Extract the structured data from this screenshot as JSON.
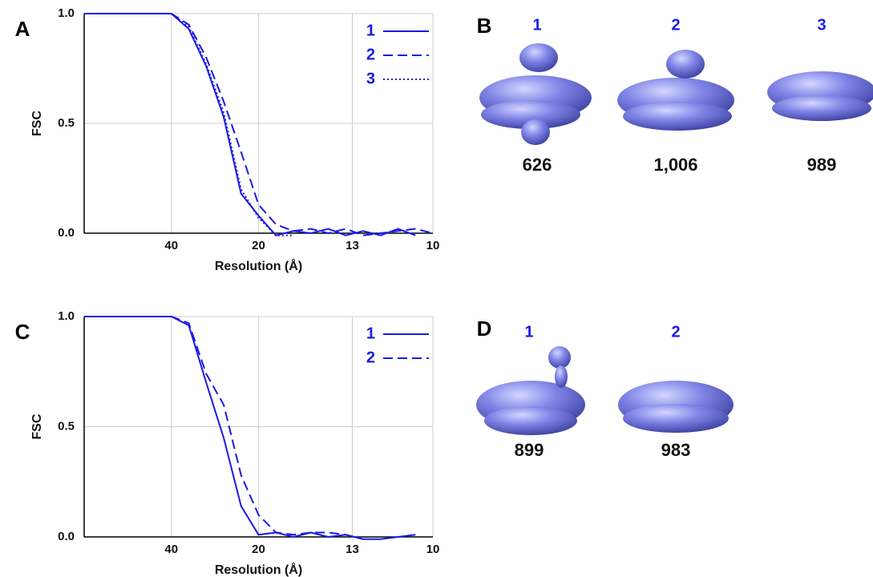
{
  "chart_data": [
    {
      "type": "line",
      "panel": "A",
      "xlabel": "Resolution (Å)",
      "ylabel": "FSC",
      "x": [
        0,
        0.005,
        0.01,
        0.015,
        0.02,
        0.025,
        0.03,
        0.035,
        0.04,
        0.045,
        0.05,
        0.055,
        0.06,
        0.065,
        0.07,
        0.075,
        0.08,
        0.085,
        0.09,
        0.095,
        0.1
      ],
      "series": [
        {
          "name": "1",
          "color": "#1a1ae6",
          "dash": "solid",
          "values": [
            1,
            1,
            1,
            1,
            1,
            1,
            0.93,
            0.76,
            0.53,
            0.18,
            0.08,
            -0.01,
            0.01,
            0.0,
            0.02,
            -0.01,
            0.01,
            -0.01,
            0.02,
            -0.01,
            null
          ]
        },
        {
          "name": "2",
          "color": "#1a1ae6",
          "dash": "dashed",
          "values": [
            1,
            1,
            1,
            1,
            1,
            1,
            0.95,
            0.8,
            0.6,
            0.37,
            0.13,
            0.04,
            0.01,
            0.02,
            0.0,
            0.02,
            -0.01,
            0.0,
            0.01,
            0.02,
            0.0
          ]
        },
        {
          "name": "3",
          "color": "#1a1ae6",
          "dash": "dotted",
          "values": [
            1,
            1,
            1,
            1,
            1,
            1,
            0.94,
            0.77,
            0.55,
            0.2,
            0.07,
            -0.01,
            -0.01,
            null,
            null,
            null,
            null,
            null,
            null,
            null,
            null
          ]
        }
      ],
      "xlim": [
        0,
        0.1
      ],
      "xticks": [
        {
          "value": 0.025,
          "label": "40"
        },
        {
          "value": 0.05,
          "label": "20"
        },
        {
          "value": 0.0769,
          "label": "13"
        },
        {
          "value": 0.1,
          "label": "10"
        }
      ],
      "ylim": [
        0,
        1
      ],
      "yticks": [
        {
          "value": 0,
          "label": "0.0"
        },
        0.5,
        {
          "value": 1,
          "label": "1.0"
        }
      ],
      "grid": true,
      "legend": "top-right"
    },
    {
      "type": "line",
      "panel": "C",
      "xlabel": "Resolution (Å)",
      "ylabel": "FSC",
      "x": [
        0,
        0.005,
        0.01,
        0.015,
        0.02,
        0.025,
        0.03,
        0.035,
        0.04,
        0.045,
        0.05,
        0.055,
        0.06,
        0.065,
        0.07,
        0.075,
        0.08,
        0.085,
        0.09,
        0.095,
        0.1
      ],
      "series": [
        {
          "name": "1",
          "color": "#1a1ae6",
          "dash": "solid",
          "values": [
            1,
            1,
            1,
            1,
            1,
            1,
            0.96,
            0.7,
            0.45,
            0.14,
            0.01,
            0.02,
            0.0,
            0.02,
            0.0,
            0.01,
            -0.01,
            -0.01,
            0.0,
            0.01,
            null
          ]
        },
        {
          "name": "2",
          "color": "#1a1ae6",
          "dash": "dashed",
          "values": [
            1,
            1,
            1,
            1,
            1,
            1,
            0.97,
            0.74,
            0.6,
            0.28,
            0.1,
            0.02,
            0.01,
            0.02,
            0.02,
            0.01,
            -0.01,
            null,
            null,
            null,
            null
          ]
        }
      ],
      "xlim": [
        0,
        0.1
      ],
      "xticks": [
        {
          "value": 0.025,
          "label": "40"
        },
        {
          "value": 0.05,
          "label": "20"
        },
        {
          "value": 0.0769,
          "label": "13"
        },
        {
          "value": 0.1,
          "label": "10"
        }
      ],
      "ylim": [
        0,
        1
      ],
      "yticks": [
        {
          "value": 0,
          "label": "0.0"
        },
        0.5,
        {
          "value": 1,
          "label": "1.0"
        }
      ],
      "grid": true,
      "legend": "top-right"
    }
  ],
  "maps": [
    {
      "panel": "B",
      "labels": [
        "1",
        "2",
        "3"
      ],
      "counts": [
        "626",
        "1,006",
        "989"
      ]
    },
    {
      "panel": "D",
      "labels": [
        "1",
        "2"
      ],
      "counts": [
        "899",
        "983"
      ]
    }
  ]
}
